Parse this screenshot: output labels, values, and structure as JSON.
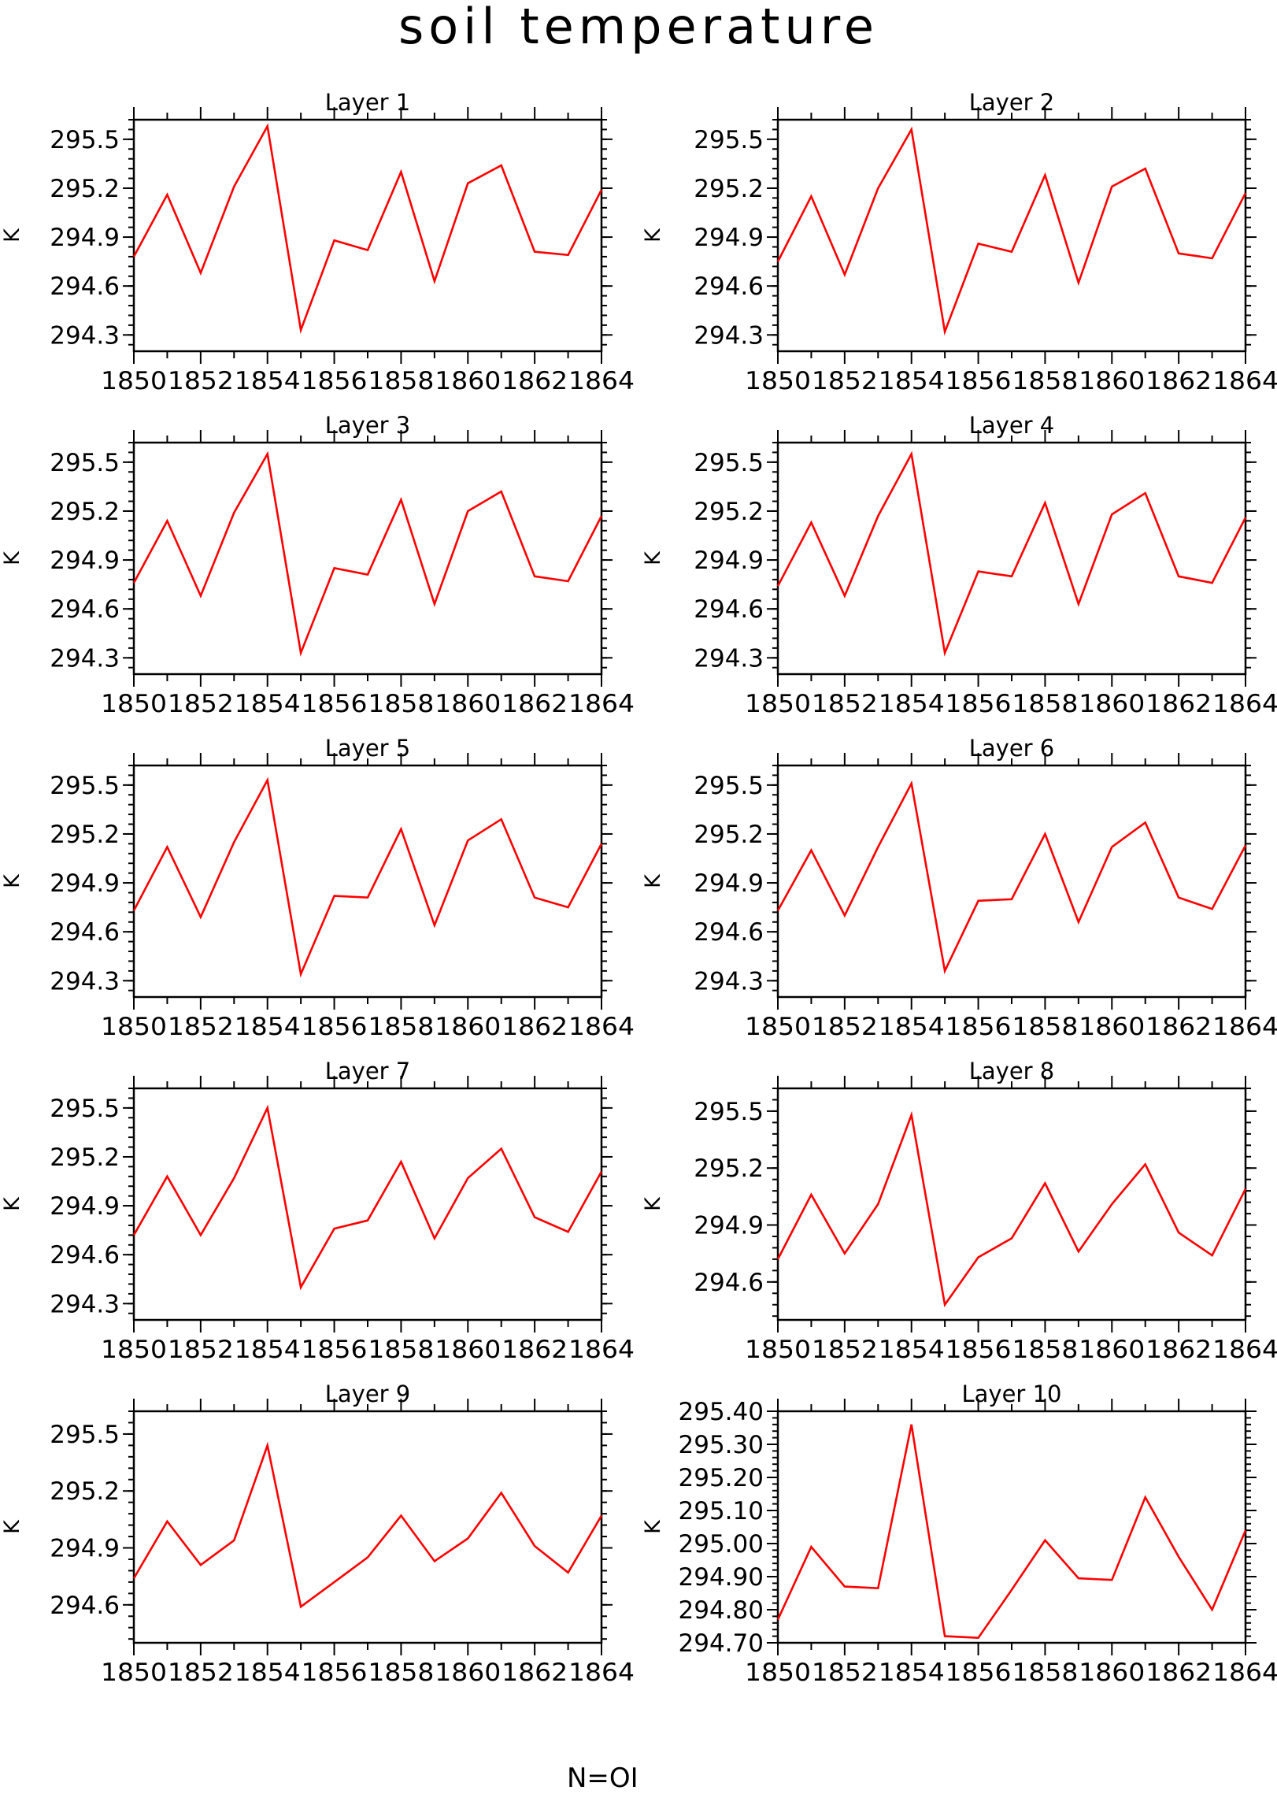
{
  "page_title": "soil temperature",
  "footer_text": "N=OI",
  "colors": {
    "line": "#ff0000",
    "axis": "#000000"
  },
  "chart_data": [
    {
      "type": "line",
      "title": "Layer 1",
      "xlabel": "",
      "ylabel": "K",
      "xlim": [
        1850,
        1864
      ],
      "ylim": [
        294.2,
        295.62
      ],
      "xticks": [
        1850,
        1852,
        1854,
        1856,
        1858,
        1860,
        1862,
        1864
      ],
      "yticks": [
        {
          "v": 294.3,
          "l": "294.3"
        },
        {
          "v": 294.6,
          "l": "294.6"
        },
        {
          "v": 294.9,
          "l": "294.9"
        },
        {
          "v": 295.2,
          "l": "295.2"
        },
        {
          "v": 295.5,
          "l": "295.5"
        }
      ],
      "yminor": 0.06,
      "grid": false,
      "series": [
        {
          "x": [
            1850,
            1851,
            1852,
            1853,
            1854,
            1855,
            1856,
            1857,
            1858,
            1859,
            1860,
            1861,
            1862,
            1863,
            1864
          ],
          "y": [
            294.78,
            295.16,
            294.68,
            295.21,
            295.58,
            294.33,
            294.88,
            294.82,
            295.3,
            294.63,
            295.23,
            295.34,
            294.81,
            294.79,
            295.19
          ]
        }
      ]
    },
    {
      "type": "line",
      "title": "Layer 2",
      "xlabel": "",
      "ylabel": "K",
      "xlim": [
        1850,
        1864
      ],
      "ylim": [
        294.2,
        295.62
      ],
      "xticks": [
        1850,
        1852,
        1854,
        1856,
        1858,
        1860,
        1862,
        1864
      ],
      "yticks": [
        {
          "v": 294.3,
          "l": "294.3"
        },
        {
          "v": 294.6,
          "l": "294.6"
        },
        {
          "v": 294.9,
          "l": "294.9"
        },
        {
          "v": 295.2,
          "l": "295.2"
        },
        {
          "v": 295.5,
          "l": "295.5"
        }
      ],
      "yminor": 0.06,
      "grid": false,
      "series": [
        {
          "x": [
            1850,
            1851,
            1852,
            1853,
            1854,
            1855,
            1856,
            1857,
            1858,
            1859,
            1860,
            1861,
            1862,
            1863,
            1864
          ],
          "y": [
            294.75,
            295.15,
            294.67,
            295.2,
            295.56,
            294.32,
            294.86,
            294.81,
            295.28,
            294.62,
            295.21,
            295.32,
            294.8,
            294.77,
            295.17
          ]
        }
      ]
    },
    {
      "type": "line",
      "title": "Layer 3",
      "xlabel": "",
      "ylabel": "K",
      "xlim": [
        1850,
        1864
      ],
      "ylim": [
        294.2,
        295.62
      ],
      "xticks": [
        1850,
        1852,
        1854,
        1856,
        1858,
        1860,
        1862,
        1864
      ],
      "yticks": [
        {
          "v": 294.3,
          "l": "294.3"
        },
        {
          "v": 294.6,
          "l": "294.6"
        },
        {
          "v": 294.9,
          "l": "294.9"
        },
        {
          "v": 295.2,
          "l": "295.2"
        },
        {
          "v": 295.5,
          "l": "295.5"
        }
      ],
      "yminor": 0.06,
      "grid": false,
      "series": [
        {
          "x": [
            1850,
            1851,
            1852,
            1853,
            1854,
            1855,
            1856,
            1857,
            1858,
            1859,
            1860,
            1861,
            1862,
            1863,
            1864
          ],
          "y": [
            294.76,
            295.14,
            294.68,
            295.19,
            295.55,
            294.33,
            294.85,
            294.81,
            295.27,
            294.63,
            295.2,
            295.32,
            294.8,
            294.77,
            295.17
          ]
        }
      ]
    },
    {
      "type": "line",
      "title": "Layer 4",
      "xlabel": "",
      "ylabel": "K",
      "xlim": [
        1850,
        1864
      ],
      "ylim": [
        294.2,
        295.62
      ],
      "xticks": [
        1850,
        1852,
        1854,
        1856,
        1858,
        1860,
        1862,
        1864
      ],
      "yticks": [
        {
          "v": 294.3,
          "l": "294.3"
        },
        {
          "v": 294.6,
          "l": "294.6"
        },
        {
          "v": 294.9,
          "l": "294.9"
        },
        {
          "v": 295.2,
          "l": "295.2"
        },
        {
          "v": 295.5,
          "l": "295.5"
        }
      ],
      "yminor": 0.06,
      "grid": false,
      "series": [
        {
          "x": [
            1850,
            1851,
            1852,
            1853,
            1854,
            1855,
            1856,
            1857,
            1858,
            1859,
            1860,
            1861,
            1862,
            1863,
            1864
          ],
          "y": [
            294.74,
            295.13,
            294.68,
            295.17,
            295.55,
            294.33,
            294.83,
            294.8,
            295.25,
            294.63,
            295.18,
            295.31,
            294.8,
            294.76,
            295.16
          ]
        }
      ]
    },
    {
      "type": "line",
      "title": "Layer 5",
      "xlabel": "",
      "ylabel": "K",
      "xlim": [
        1850,
        1864
      ],
      "ylim": [
        294.2,
        295.62
      ],
      "xticks": [
        1850,
        1852,
        1854,
        1856,
        1858,
        1860,
        1862,
        1864
      ],
      "yticks": [
        {
          "v": 294.3,
          "l": "294.3"
        },
        {
          "v": 294.6,
          "l": "294.6"
        },
        {
          "v": 294.9,
          "l": "294.9"
        },
        {
          "v": 295.2,
          "l": "295.2"
        },
        {
          "v": 295.5,
          "l": "295.5"
        }
      ],
      "yminor": 0.06,
      "grid": false,
      "series": [
        {
          "x": [
            1850,
            1851,
            1852,
            1853,
            1854,
            1855,
            1856,
            1857,
            1858,
            1859,
            1860,
            1861,
            1862,
            1863,
            1864
          ],
          "y": [
            294.73,
            295.12,
            294.69,
            295.15,
            295.53,
            294.34,
            294.82,
            294.81,
            295.23,
            294.64,
            295.16,
            295.29,
            294.81,
            294.75,
            295.14
          ]
        }
      ]
    },
    {
      "type": "line",
      "title": "Layer 6",
      "xlabel": "",
      "ylabel": "K",
      "xlim": [
        1850,
        1864
      ],
      "ylim": [
        294.2,
        295.62
      ],
      "xticks": [
        1850,
        1852,
        1854,
        1856,
        1858,
        1860,
        1862,
        1864
      ],
      "yticks": [
        {
          "v": 294.3,
          "l": "294.3"
        },
        {
          "v": 294.6,
          "l": "294.6"
        },
        {
          "v": 294.9,
          "l": "294.9"
        },
        {
          "v": 295.2,
          "l": "295.2"
        },
        {
          "v": 295.5,
          "l": "295.5"
        }
      ],
      "yminor": 0.06,
      "grid": false,
      "series": [
        {
          "x": [
            1850,
            1851,
            1852,
            1853,
            1854,
            1855,
            1856,
            1857,
            1858,
            1859,
            1860,
            1861,
            1862,
            1863,
            1864
          ],
          "y": [
            294.73,
            295.1,
            294.7,
            295.12,
            295.51,
            294.36,
            294.79,
            294.8,
            295.2,
            294.66,
            295.12,
            295.27,
            294.81,
            294.74,
            295.13
          ]
        }
      ]
    },
    {
      "type": "line",
      "title": "Layer 7",
      "xlabel": "",
      "ylabel": "K",
      "xlim": [
        1850,
        1864
      ],
      "ylim": [
        294.2,
        295.62
      ],
      "xticks": [
        1850,
        1852,
        1854,
        1856,
        1858,
        1860,
        1862,
        1864
      ],
      "yticks": [
        {
          "v": 294.3,
          "l": "294.3"
        },
        {
          "v": 294.6,
          "l": "294.6"
        },
        {
          "v": 294.9,
          "l": "294.9"
        },
        {
          "v": 295.2,
          "l": "295.2"
        },
        {
          "v": 295.5,
          "l": "295.5"
        }
      ],
      "yminor": 0.06,
      "grid": false,
      "series": [
        {
          "x": [
            1850,
            1851,
            1852,
            1853,
            1854,
            1855,
            1856,
            1857,
            1858,
            1859,
            1860,
            1861,
            1862,
            1863,
            1864
          ],
          "y": [
            294.72,
            295.08,
            294.72,
            295.07,
            295.5,
            294.4,
            294.76,
            294.81,
            295.17,
            294.7,
            295.07,
            295.25,
            294.83,
            294.74,
            295.11
          ]
        }
      ]
    },
    {
      "type": "line",
      "title": "Layer 8",
      "xlabel": "",
      "ylabel": "K",
      "xlim": [
        1850,
        1864
      ],
      "ylim": [
        294.4,
        295.62
      ],
      "xticks": [
        1850,
        1852,
        1854,
        1856,
        1858,
        1860,
        1862,
        1864
      ],
      "yticks": [
        {
          "v": 294.6,
          "l": "294.6"
        },
        {
          "v": 294.9,
          "l": "294.9"
        },
        {
          "v": 295.2,
          "l": "295.2"
        },
        {
          "v": 295.5,
          "l": "295.5"
        }
      ],
      "yminor": 0.06,
      "grid": false,
      "series": [
        {
          "x": [
            1850,
            1851,
            1852,
            1853,
            1854,
            1855,
            1856,
            1857,
            1858,
            1859,
            1860,
            1861,
            1862,
            1863,
            1864
          ],
          "y": [
            294.72,
            295.06,
            294.75,
            295.01,
            295.48,
            294.48,
            294.73,
            294.83,
            295.12,
            294.76,
            295.01,
            295.22,
            294.86,
            294.74,
            295.09
          ]
        }
      ]
    },
    {
      "type": "line",
      "title": "Layer 9",
      "xlabel": "",
      "ylabel": "K",
      "xlim": [
        1850,
        1864
      ],
      "ylim": [
        294.4,
        295.62
      ],
      "xticks": [
        1850,
        1852,
        1854,
        1856,
        1858,
        1860,
        1862,
        1864
      ],
      "yticks": [
        {
          "v": 294.6,
          "l": "294.6"
        },
        {
          "v": 294.9,
          "l": "294.9"
        },
        {
          "v": 295.2,
          "l": "295.2"
        },
        {
          "v": 295.5,
          "l": "295.5"
        }
      ],
      "yminor": 0.06,
      "grid": false,
      "series": [
        {
          "x": [
            1850,
            1851,
            1852,
            1853,
            1854,
            1855,
            1856,
            1857,
            1858,
            1859,
            1860,
            1861,
            1862,
            1863,
            1864
          ],
          "y": [
            294.74,
            295.04,
            294.81,
            294.94,
            295.44,
            294.59,
            294.72,
            294.85,
            295.07,
            294.83,
            294.95,
            295.19,
            294.91,
            294.77,
            295.07
          ]
        }
      ]
    },
    {
      "type": "line",
      "title": "Layer 10",
      "xlabel": "",
      "ylabel": "K",
      "xlim": [
        1850,
        1864
      ],
      "ylim": [
        294.7,
        295.4
      ],
      "xticks": [
        1850,
        1852,
        1854,
        1856,
        1858,
        1860,
        1862,
        1864
      ],
      "yticks": [
        {
          "v": 294.7,
          "l": "294.70"
        },
        {
          "v": 294.8,
          "l": "294.80"
        },
        {
          "v": 294.9,
          "l": "294.90"
        },
        {
          "v": 295.0,
          "l": "295.00"
        },
        {
          "v": 295.1,
          "l": "295.10"
        },
        {
          "v": 295.2,
          "l": "295.20"
        },
        {
          "v": 295.3,
          "l": "295.30"
        },
        {
          "v": 295.4,
          "l": "295.40"
        }
      ],
      "yminor": 0.02,
      "grid": false,
      "series": [
        {
          "x": [
            1850,
            1851,
            1852,
            1853,
            1854,
            1855,
            1856,
            1857,
            1858,
            1859,
            1860,
            1861,
            1862,
            1863,
            1864
          ],
          "y": [
            294.77,
            294.99,
            294.87,
            294.865,
            295.36,
            294.72,
            294.715,
            294.86,
            295.01,
            294.895,
            294.89,
            295.14,
            294.96,
            294.8,
            295.04
          ]
        }
      ]
    }
  ]
}
